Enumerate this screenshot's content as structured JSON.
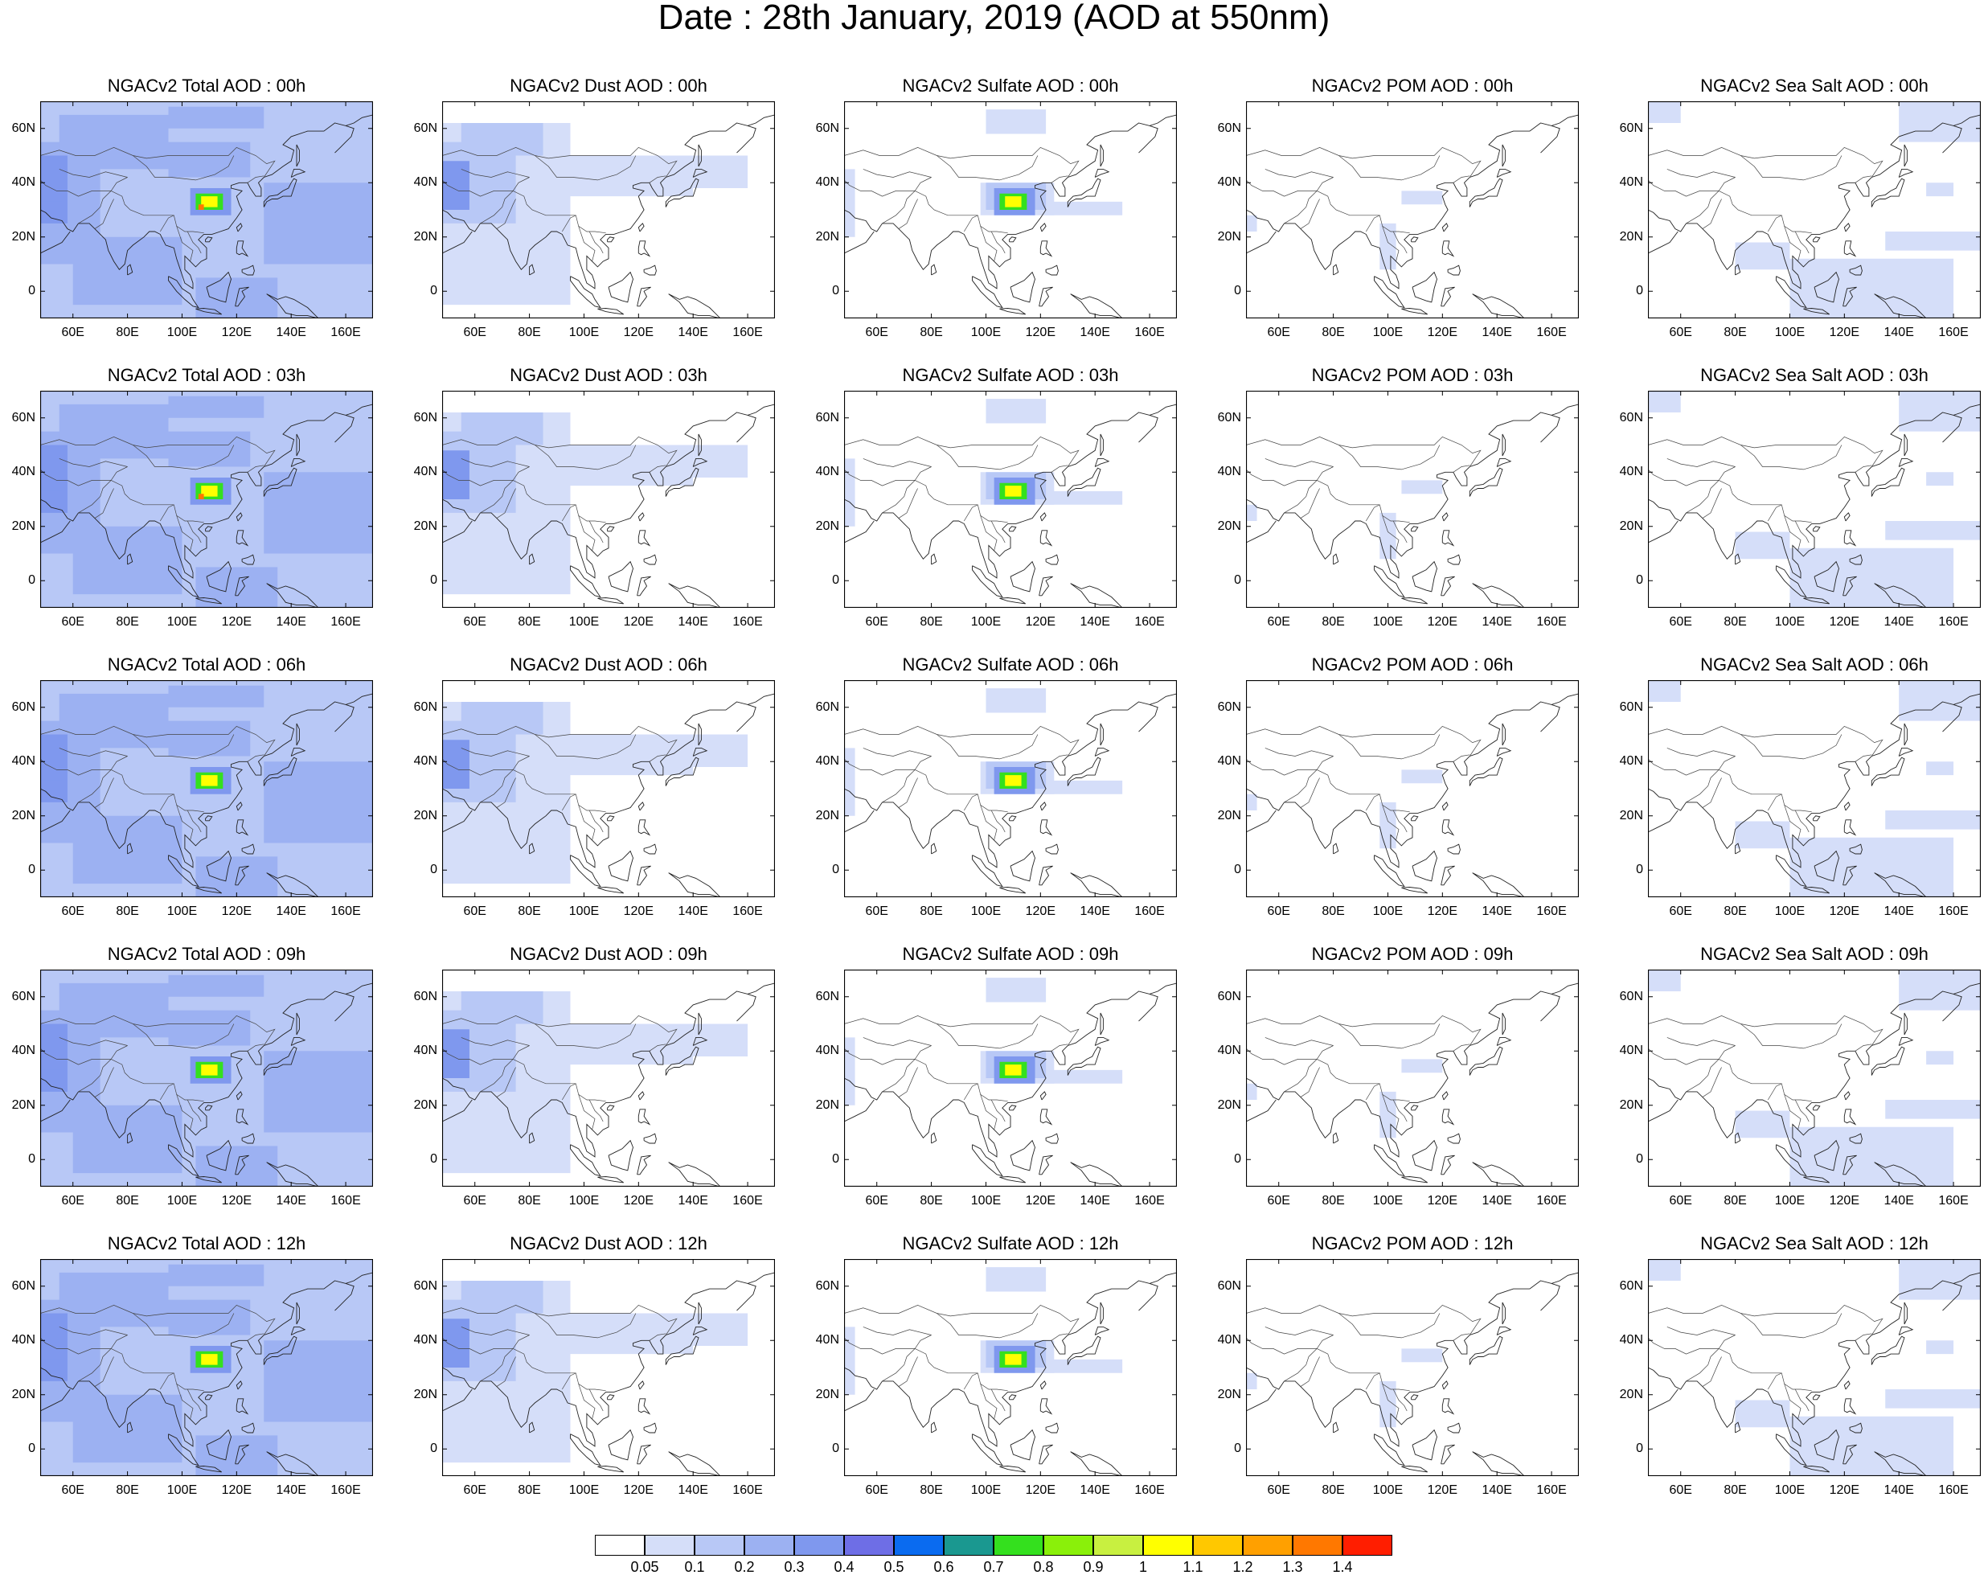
{
  "title": "Date : 28th January, 2019 (AOD at 550nm)",
  "panel_titles": [
    [
      "NGACv2 Total AOD : 00h",
      "NGACv2 Dust AOD : 00h",
      "NGACv2 Sulfate AOD : 00h",
      "NGACv2 POM AOD : 00h",
      "NGACv2 Sea Salt AOD : 00h"
    ],
    [
      "NGACv2 Total AOD : 03h",
      "NGACv2 Dust AOD : 03h",
      "NGACv2 Sulfate AOD : 03h",
      "NGACv2 POM AOD : 03h",
      "NGACv2 Sea Salt AOD : 03h"
    ],
    [
      "NGACv2 Total AOD : 06h",
      "NGACv2 Dust AOD : 06h",
      "NGACv2 Sulfate AOD : 06h",
      "NGACv2 POM AOD : 06h",
      "NGACv2 Sea Salt AOD : 06h"
    ],
    [
      "NGACv2 Total AOD : 09h",
      "NGACv2 Dust AOD : 09h",
      "NGACv2 Sulfate AOD : 09h",
      "NGACv2 POM AOD : 09h",
      "NGACv2 Sea Salt  AOD : 09h"
    ],
    [
      "NGACv2 Total AOD  : 12h",
      "NGACv2 Dust AOD : 12h",
      "NGACv2 Sulfate AOD : 12h",
      "NGACv2 POM  AOD : 12h",
      "NGACv2 Sea Salt  AOD : 12h"
    ]
  ],
  "map": {
    "lon_range": [
      48,
      170
    ],
    "lat_range": [
      -10,
      70
    ],
    "lat_ticks": [
      "60N",
      "40N",
      "20N",
      "0"
    ],
    "lat_values": [
      60,
      40,
      20,
      0
    ],
    "lon_ticks": [
      "60E",
      "80E",
      "100E",
      "120E",
      "140E",
      "160E"
    ],
    "lon_values": [
      60,
      80,
      100,
      120,
      140,
      160
    ]
  },
  "colorbar": {
    "labels": [
      "0.05",
      "0.1",
      "0.2",
      "0.3",
      "0.4",
      "0.5",
      "0.6",
      "0.7",
      "0.8",
      "0.9",
      "1",
      "1.1",
      "1.2",
      "1.3",
      "1.4"
    ],
    "colors": [
      "#ffffff",
      "#d5def9",
      "#b8c8f6",
      "#9cb1f2",
      "#7f98ee",
      "#6e6ee6",
      "#0a6bf0",
      "#1a9890",
      "#34e01e",
      "#8af00a",
      "#c8f040",
      "#ffff00",
      "#ffc800",
      "#ffa000",
      "#ff7800",
      "#ff1e00"
    ]
  },
  "aerosol_colors": {
    "total": "#9cb1f2",
    "dust": "#b8c8f6",
    "sulfate": "#b8c8f6",
    "pom": "#d5def9",
    "seasalt": "#d5def9",
    "hotspot_outer": "#34e01e",
    "hotspot_inner": "#ffff00",
    "hotspot_core": "#ff7800"
  }
}
